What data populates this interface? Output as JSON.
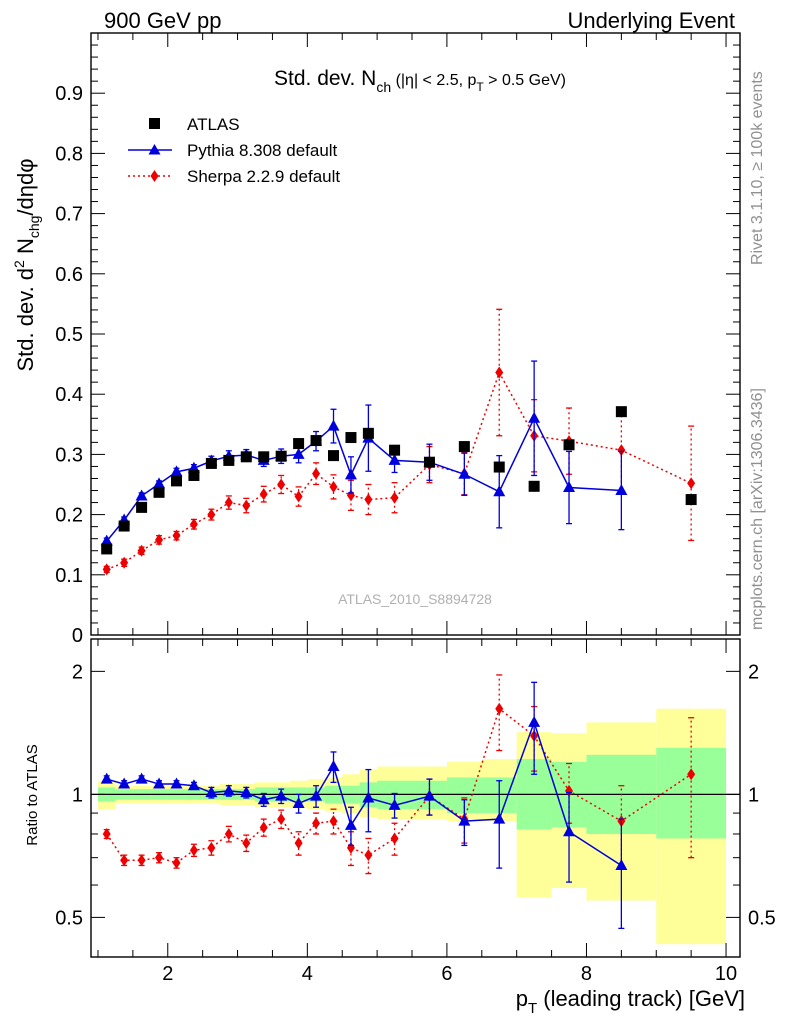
{
  "header": {
    "left": "900 GeV pp",
    "right": "Underlying Event"
  },
  "side_labels": {
    "rivet": "Rivet 3.1.10, ≥ 100k events",
    "mcplots": "mcplots.cern.ch [arXiv:1306.3436]"
  },
  "watermark": "ATLAS_2010_S8894728",
  "chart_data": [
    {
      "type": "scatter",
      "panel": "main",
      "title_parts": {
        "main": "Std. dev. N",
        "sub": "ch",
        "cut1": " (|η| < 2.5, p",
        "cut_sub": "T",
        "cut2": " > 0.5 GeV)"
      },
      "ylabel_parts": {
        "a": "Std. dev. d",
        "sup": "2",
        "b": " N",
        "sub": "chg",
        "c": "/dηdφ"
      },
      "xlim": [
        0.9,
        10.2
      ],
      "ylim": [
        0,
        1.0
      ],
      "yticks": [
        0,
        0.1,
        0.2,
        0.3,
        0.4,
        0.5,
        0.6,
        0.7,
        0.8,
        0.9
      ],
      "ytick_labels": [
        "0",
        "0.1",
        "0.2",
        "0.3",
        "0.4",
        "0.5",
        "0.6",
        "0.7",
        "0.8",
        "0.9"
      ],
      "legend_position": "top-left",
      "series": [
        {
          "name": "ATLAS",
          "color": "#000000",
          "marker": "square",
          "x": [
            1.125,
            1.375,
            1.625,
            1.875,
            2.125,
            2.375,
            2.625,
            2.875,
            3.125,
            3.375,
            3.625,
            3.875,
            4.125,
            4.375,
            4.625,
            4.875,
            5.25,
            5.75,
            6.25,
            6.75,
            7.25,
            7.75,
            8.5,
            9.5
          ],
          "y": [
            0.143,
            0.181,
            0.212,
            0.237,
            0.256,
            0.265,
            0.285,
            0.29,
            0.296,
            0.296,
            0.297,
            0.318,
            0.323,
            0.298,
            0.328,
            0.335,
            0.307,
            0.287,
            0.313,
            0.279,
            0.247,
            0.316,
            0.371,
            0.225
          ]
        },
        {
          "name": "Pythia 8.308 default",
          "color": "#0000dd",
          "marker": "triangle",
          "line": "solid",
          "x": [
            1.125,
            1.375,
            1.625,
            1.875,
            2.125,
            2.375,
            2.625,
            2.875,
            3.125,
            3.375,
            3.625,
            3.875,
            4.125,
            4.375,
            4.625,
            4.875,
            5.25,
            5.75,
            6.25,
            6.75,
            7.25,
            7.75,
            8.5
          ],
          "y": [
            0.156,
            0.191,
            0.231,
            0.251,
            0.271,
            0.277,
            0.289,
            0.297,
            0.299,
            0.29,
            0.297,
            0.3,
            0.322,
            0.347,
            0.266,
            0.327,
            0.29,
            0.287,
            0.267,
            0.238,
            0.36,
            0.245,
            0.24
          ],
          "err": [
            0.005,
            0.005,
            0.005,
            0.005,
            0.006,
            0.006,
            0.008,
            0.009,
            0.009,
            0.01,
            0.012,
            0.014,
            0.016,
            0.028,
            0.03,
            0.055,
            0.02,
            0.03,
            0.035,
            0.06,
            0.095,
            0.06,
            0.065
          ]
        },
        {
          "name": "Sherpa 2.2.9 default",
          "color": "#ee0000",
          "marker": "diamond",
          "line": "dotted",
          "x": [
            1.125,
            1.375,
            1.625,
            1.875,
            2.125,
            2.375,
            2.625,
            2.875,
            3.125,
            3.375,
            3.625,
            3.875,
            4.125,
            4.375,
            4.625,
            4.875,
            5.25,
            5.75,
            6.25,
            6.75,
            7.25,
            7.75,
            8.5,
            9.5
          ],
          "y": [
            0.109,
            0.12,
            0.14,
            0.158,
            0.165,
            0.184,
            0.2,
            0.22,
            0.215,
            0.234,
            0.25,
            0.23,
            0.268,
            0.246,
            0.232,
            0.225,
            0.228,
            0.283,
            0.268,
            0.436,
            0.331,
            0.322,
            0.307,
            0.252
          ],
          "err": [
            0.005,
            0.006,
            0.006,
            0.007,
            0.007,
            0.008,
            0.009,
            0.011,
            0.012,
            0.013,
            0.015,
            0.016,
            0.018,
            0.02,
            0.025,
            0.025,
            0.025,
            0.03,
            0.035,
            0.105,
            0.06,
            0.055,
            0.07,
            0.095
          ]
        }
      ]
    },
    {
      "type": "scatter",
      "panel": "ratio",
      "ylabel": "Ratio to ATLAS",
      "xlabel_parts": {
        "a": "p",
        "sub": "T",
        "b": " (leading track) [GeV]"
      },
      "xlim": [
        0.9,
        10.2
      ],
      "ylim_log": [
        0.4,
        2.4
      ],
      "log_y": true,
      "xticks": [
        2,
        4,
        6,
        8,
        10
      ],
      "xtick_labels": [
        "2",
        "4",
        "6",
        "8",
        "10"
      ],
      "yticks": [
        0.5,
        1,
        2
      ],
      "ytick_labels": [
        "0.5",
        "1",
        "2"
      ],
      "bands": {
        "bin_edges": [
          1.0,
          1.25,
          1.5,
          1.75,
          2.0,
          2.25,
          2.5,
          2.75,
          3.0,
          3.25,
          3.5,
          3.75,
          4.0,
          4.25,
          4.5,
          4.75,
          5.0,
          5.5,
          6.0,
          6.5,
          7.0,
          7.5,
          8.0,
          9.0,
          10.0
        ],
        "inner_lo": [
          0.96,
          0.97,
          0.97,
          0.97,
          0.97,
          0.97,
          0.97,
          0.97,
          0.97,
          0.96,
          0.96,
          0.96,
          0.96,
          0.95,
          0.95,
          0.93,
          0.92,
          0.92,
          0.9,
          0.9,
          0.82,
          0.83,
          0.8,
          0.78
        ],
        "inner_hi": [
          1.04,
          1.03,
          1.03,
          1.03,
          1.03,
          1.03,
          1.03,
          1.03,
          1.03,
          1.04,
          1.04,
          1.04,
          1.04,
          1.05,
          1.05,
          1.07,
          1.08,
          1.08,
          1.1,
          1.1,
          1.22,
          1.2,
          1.25,
          1.3
        ],
        "outer_lo": [
          0.92,
          0.95,
          0.95,
          0.95,
          0.95,
          0.95,
          0.95,
          0.94,
          0.94,
          0.93,
          0.93,
          0.93,
          0.92,
          0.91,
          0.9,
          0.88,
          0.87,
          0.87,
          0.86,
          0.86,
          0.56,
          0.59,
          0.55,
          0.43
        ],
        "outer_hi": [
          1.08,
          1.05,
          1.05,
          1.05,
          1.05,
          1.05,
          1.05,
          1.06,
          1.06,
          1.07,
          1.07,
          1.08,
          1.09,
          1.1,
          1.12,
          1.15,
          1.17,
          1.17,
          1.2,
          1.22,
          1.42,
          1.41,
          1.5,
          1.62
        ]
      },
      "band_colors": {
        "inner": "#99ff99",
        "outer": "#ffff99"
      },
      "series": [
        {
          "name": "Pythia 8.308 default",
          "color": "#0000dd",
          "marker": "triangle",
          "line": "solid",
          "x": [
            1.125,
            1.375,
            1.625,
            1.875,
            2.125,
            2.375,
            2.625,
            2.875,
            3.125,
            3.375,
            3.625,
            3.875,
            4.125,
            4.375,
            4.625,
            4.875,
            5.25,
            5.75,
            6.25,
            6.75,
            7.25,
            7.75,
            8.5
          ],
          "y": [
            1.09,
            1.06,
            1.09,
            1.06,
            1.06,
            1.05,
            1.01,
            1.02,
            1.01,
            0.97,
            0.99,
            0.95,
            0.99,
            1.17,
            0.84,
            0.98,
            0.94,
            0.99,
            0.86,
            0.87,
            1.5,
            0.81,
            0.67
          ],
          "err": [
            0.02,
            0.02,
            0.02,
            0.02,
            0.02,
            0.02,
            0.03,
            0.03,
            0.03,
            0.035,
            0.04,
            0.05,
            0.06,
            0.1,
            0.09,
            0.17,
            0.065,
            0.1,
            0.11,
            0.21,
            0.38,
            0.2,
            0.2
          ]
        },
        {
          "name": "Sherpa 2.2.9 default",
          "color": "#ee0000",
          "marker": "diamond",
          "line": "dotted",
          "x": [
            1.125,
            1.375,
            1.625,
            1.875,
            2.125,
            2.375,
            2.625,
            2.875,
            3.125,
            3.375,
            3.625,
            3.875,
            4.125,
            4.375,
            4.625,
            4.875,
            5.25,
            5.75,
            6.25,
            6.75,
            7.25,
            7.75,
            8.5,
            9.5
          ],
          "y": [
            0.8,
            0.69,
            0.69,
            0.7,
            0.68,
            0.73,
            0.74,
            0.8,
            0.76,
            0.83,
            0.87,
            0.76,
            0.85,
            0.86,
            0.74,
            0.71,
            0.78,
            0.99,
            0.87,
            1.62,
            1.39,
            1.02,
            0.86,
            1.12
          ],
          "err": [
            0.02,
            0.02,
            0.02,
            0.02,
            0.02,
            0.025,
            0.03,
            0.035,
            0.035,
            0.04,
            0.045,
            0.05,
            0.05,
            0.06,
            0.07,
            0.07,
            0.07,
            0.1,
            0.11,
            0.34,
            0.25,
            0.17,
            0.19,
            0.42
          ]
        }
      ]
    }
  ]
}
